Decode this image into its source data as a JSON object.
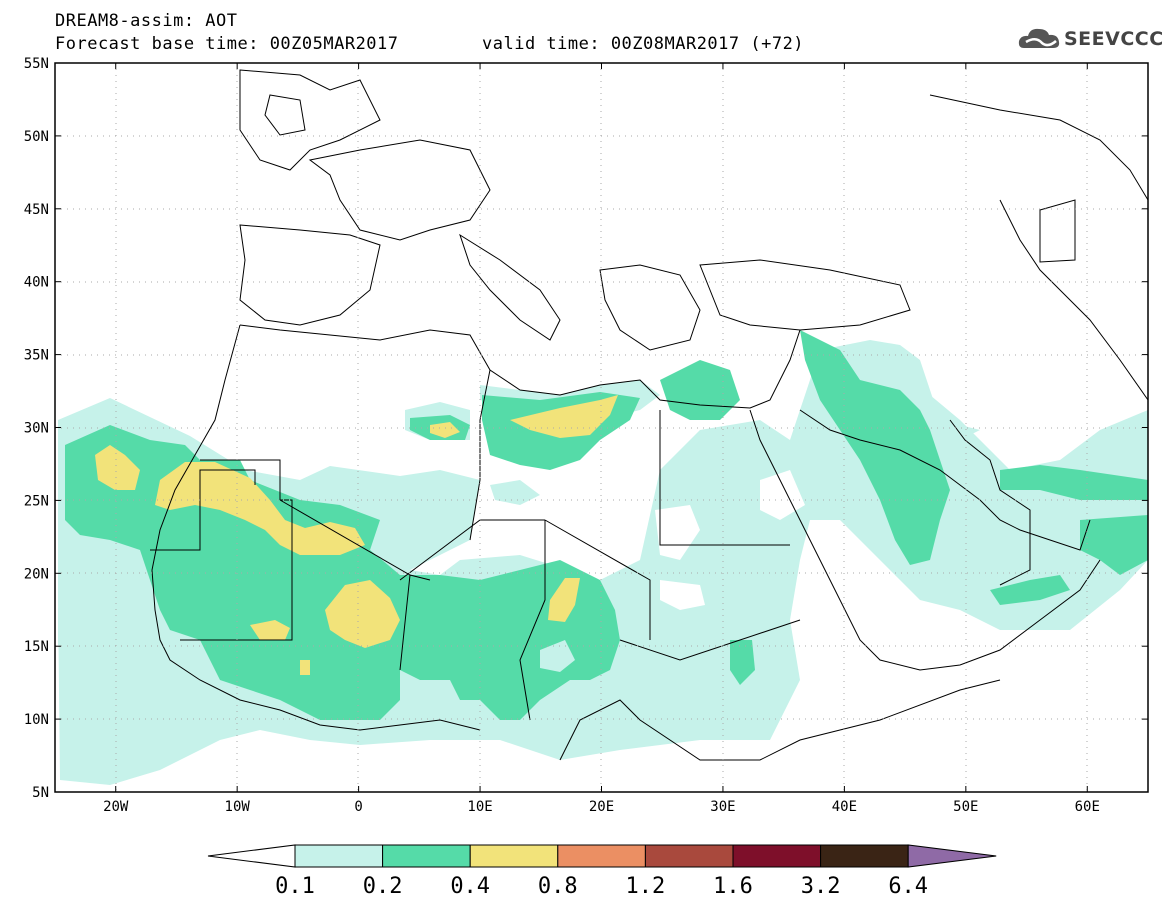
{
  "header": {
    "model_line": "DREAM8-assim: AOT",
    "base_line": "Forecast base time: 00Z05MAR2017",
    "valid_line": "valid time: 00Z08MAR2017 (+72)"
  },
  "logo": {
    "text": "SEEVCCC",
    "icon": "cloud-logo-icon"
  },
  "map": {
    "lon_range": [
      -25,
      65
    ],
    "lat_range": [
      5,
      55
    ],
    "lat_ticks": [
      "55N",
      "50N",
      "45N",
      "40N",
      "35N",
      "30N",
      "25N",
      "20N",
      "15N",
      "10N",
      "5N"
    ],
    "lon_ticks": [
      "20W",
      "10W",
      "0",
      "10E",
      "20E",
      "30E",
      "40E",
      "50E",
      "60E"
    ],
    "gridlines": "dotted"
  },
  "colorbar": {
    "labels": [
      "0.1",
      "0.2",
      "0.4",
      "0.8",
      "1.2",
      "1.6",
      "3.2",
      "6.4"
    ],
    "colors": [
      "#c6f2ea",
      "#55dba8",
      "#f2e37a",
      "#eb8f63",
      "#a9493d",
      "#7e0f2a",
      "#3a2415",
      "#8f6aa6"
    ],
    "low_color": "#ffffff"
  }
}
